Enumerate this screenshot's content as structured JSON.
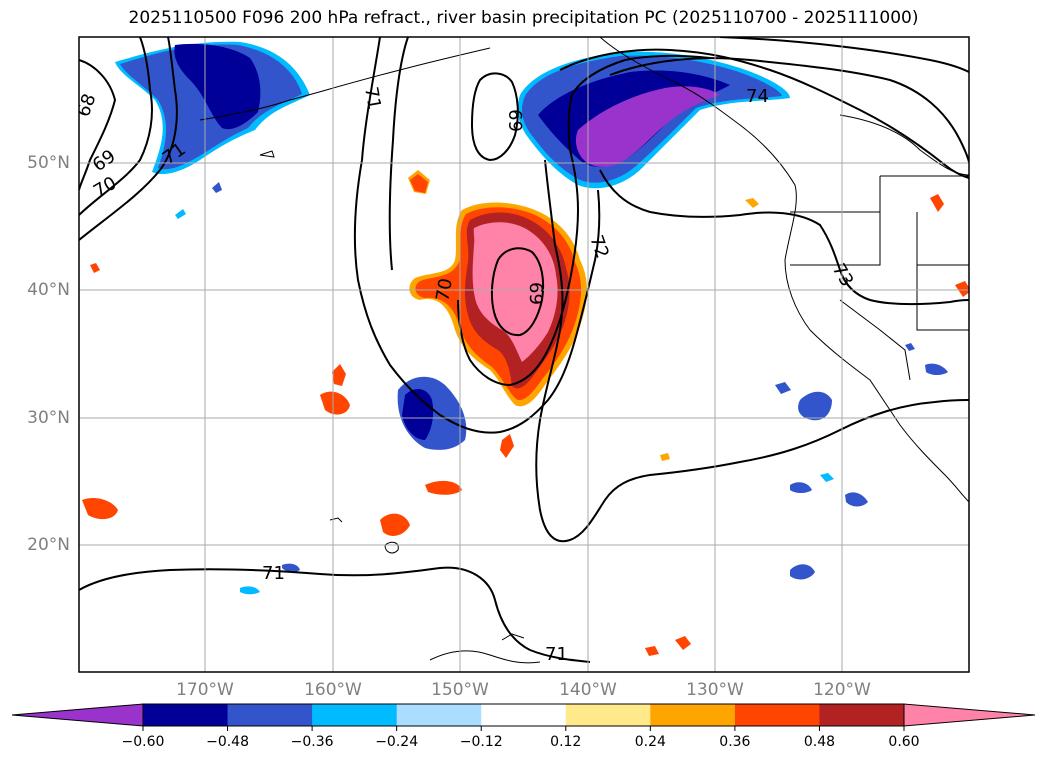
{
  "title": "2025110500 F096 200 hPa refract., river basin precipitation PC (2025110700 - 2025111000)",
  "lat_labels": [
    "50°N",
    "40°N",
    "30°N",
    "20°N"
  ],
  "lon_labels": [
    "170°W",
    "160°W",
    "150°W",
    "140°W",
    "130°W",
    "120°W"
  ],
  "contour_labels": [
    "68",
    "69",
    "70",
    "71",
    "71",
    "69",
    "72",
    "74",
    "73",
    "70",
    "69",
    "71",
    "71"
  ],
  "colorbar": {
    "colors": [
      "#9933cc",
      "#000099",
      "#3355cc",
      "#00bbff",
      "#aaddff",
      "#ffffff",
      "#ffe98a",
      "#ffa500",
      "#ff4500",
      "#b22222",
      "#ff82a8"
    ],
    "ticks": [
      "−0.60",
      "−0.48",
      "−0.36",
      "−0.24",
      "−0.12",
      "0.12",
      "0.24",
      "0.36",
      "0.48",
      "0.60"
    ]
  }
}
